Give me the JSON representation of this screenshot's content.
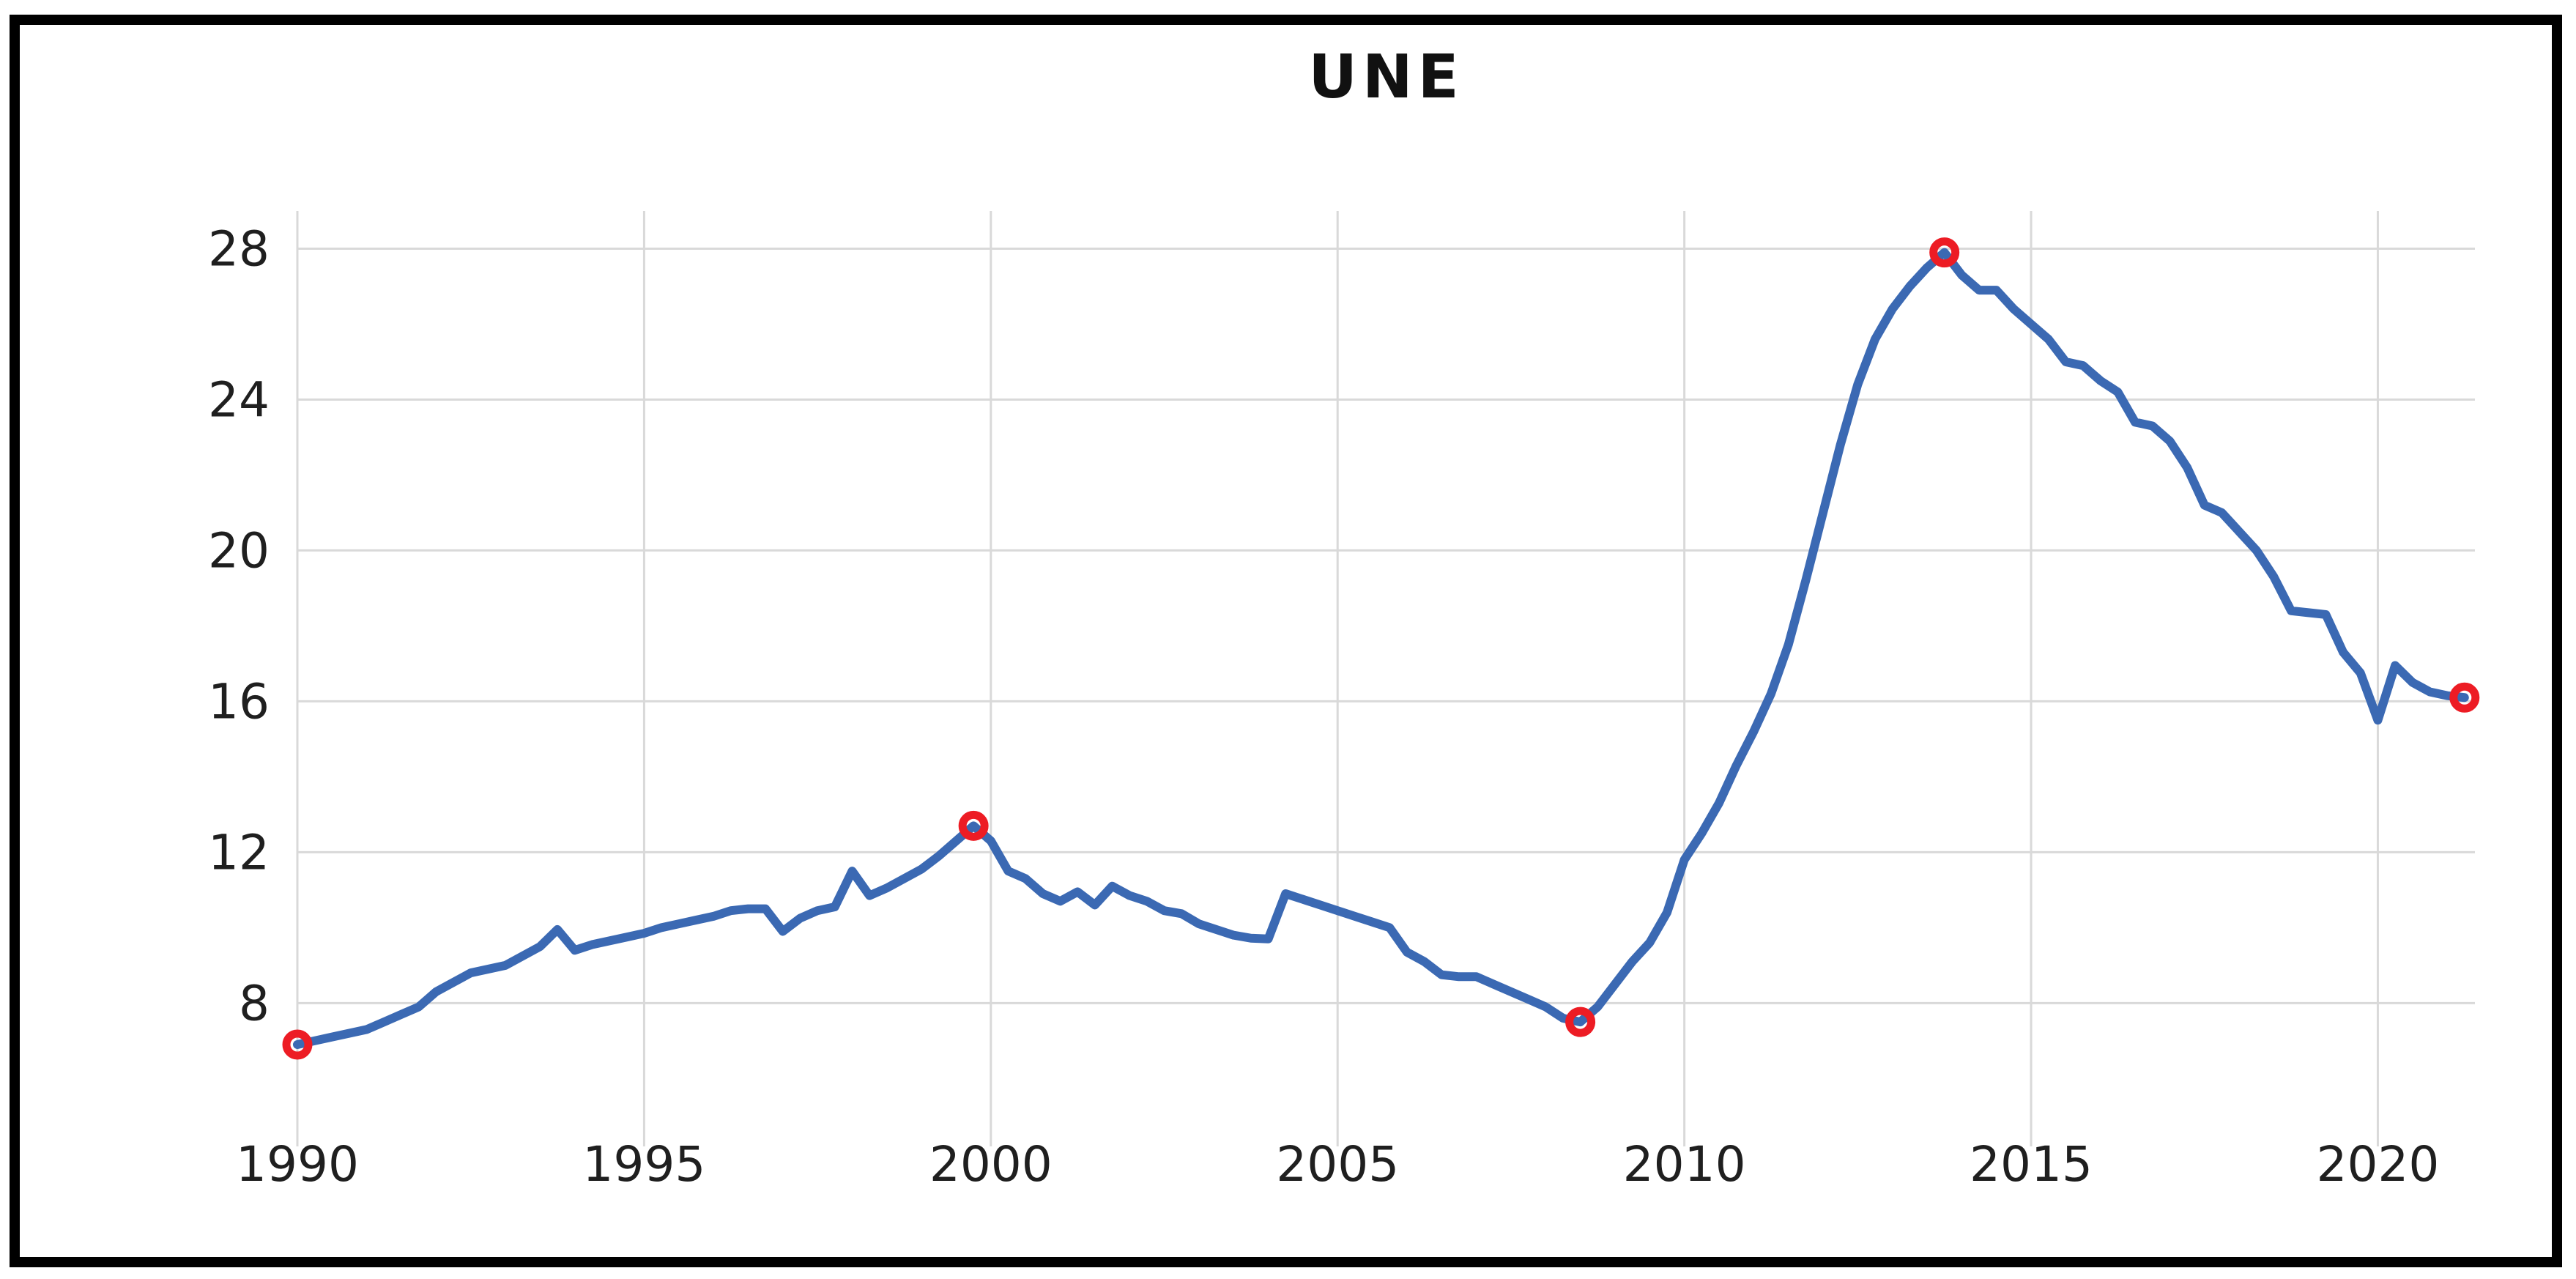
{
  "window": {
    "title": "UNE",
    "background_color": "#FFFFFF",
    "frame_border_color": "#000000"
  },
  "chart_data": {
    "type": "line",
    "title": "UNE",
    "xlabel": "",
    "ylabel": "",
    "legend": "none",
    "grid": true,
    "x_range": [
      1990,
      2021.4
    ],
    "y_range": [
      4.2,
      29.0
    ],
    "x_axis": {
      "ticks": [
        {
          "value": 1990,
          "label": "1990"
        },
        {
          "value": 1995,
          "label": "1995"
        },
        {
          "value": 2000,
          "label": "2000"
        },
        {
          "value": 2005,
          "label": "2005"
        },
        {
          "value": 2010,
          "label": "2010"
        },
        {
          "value": 2015,
          "label": "2015"
        },
        {
          "value": 2020,
          "label": "2020"
        }
      ]
    },
    "y_axis": {
      "ticks": [
        {
          "value": 8,
          "label": "8"
        },
        {
          "value": 12,
          "label": "12"
        },
        {
          "value": 16,
          "label": "16"
        },
        {
          "value": 20,
          "label": "20"
        },
        {
          "value": 24,
          "label": "24"
        },
        {
          "value": 28,
          "label": "28"
        }
      ]
    },
    "series": [
      {
        "name": "UNE",
        "x_start": 1990.0,
        "x_step": 0.25,
        "values": [
          6.9,
          7.0,
          7.1,
          7.2,
          7.3,
          7.5,
          7.7,
          7.9,
          8.3,
          8.55,
          8.8,
          8.9,
          9.0,
          9.25,
          9.5,
          9.95,
          9.4,
          9.55,
          9.65,
          9.75,
          9.85,
          10.0,
          10.1,
          10.2,
          10.3,
          10.45,
          10.5,
          10.5,
          9.9,
          10.25,
          10.45,
          10.55,
          11.5,
          10.85,
          11.05,
          11.3,
          11.55,
          11.9,
          12.3,
          12.7,
          12.3,
          11.5,
          11.3,
          10.9,
          10.7,
          10.95,
          10.6,
          11.1,
          10.85,
          10.7,
          10.45,
          10.37,
          10.1,
          9.95,
          9.8,
          9.72,
          9.7,
          10.9,
          10.75,
          10.6,
          10.45,
          10.3,
          10.15,
          10.0,
          9.35,
          9.1,
          8.75,
          8.7,
          8.7,
          8.5,
          8.3,
          8.1,
          7.9,
          7.6,
          7.5,
          7.9,
          8.5,
          9.1,
          9.6,
          10.4,
          11.8,
          12.5,
          13.3,
          14.3,
          15.2,
          16.2,
          17.5,
          19.2,
          21.0,
          22.8,
          24.4,
          25.6,
          26.4,
          27.0,
          27.5,
          27.9,
          27.3,
          26.9,
          26.9,
          26.4,
          26.0,
          25.6,
          25.0,
          24.9,
          24.5,
          24.2,
          23.4,
          23.3,
          22.9,
          22.2,
          21.2,
          21.0,
          20.5,
          20.0,
          19.3,
          18.4,
          18.35,
          18.3,
          17.3,
          16.75,
          15.5,
          16.95,
          16.5,
          16.25,
          16.15,
          16.1
        ]
      }
    ],
    "highlighted_points": [
      {
        "year": 1990.0,
        "value": 6.9
      },
      {
        "year": 1999.75,
        "value": 12.7
      },
      {
        "year": 2008.5,
        "value": 7.5
      },
      {
        "year": 2013.75,
        "value": 27.9
      },
      {
        "year": 2021.25,
        "value": 16.1
      }
    ],
    "colors": {
      "line": "#3B69B3",
      "marker_ring": "#ED1C24",
      "gridline": "#D9D9D9",
      "tick_text": "#1F1F1F",
      "title_text": "#111111",
      "frame_border": "#000000",
      "background": "#FFFFFF"
    }
  }
}
